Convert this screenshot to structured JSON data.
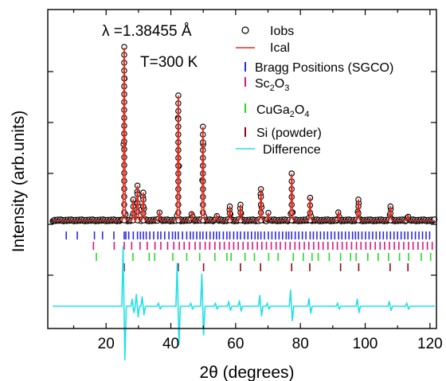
{
  "chart_data": {
    "type": "scatter",
    "xlabel": "2θ (degrees)",
    "ylabel": "Intensity (arb.units)",
    "xlim": [
      2,
      122
    ],
    "x_ticks": [
      20,
      40,
      60,
      80,
      100,
      120
    ],
    "y_ticks": [],
    "annotations": {
      "wavelength": "λ =1.38455 Å",
      "temperature": "T=300 K"
    },
    "legend": {
      "position": "top-right",
      "entries": [
        {
          "name": "Iobs",
          "marker": "open-circle",
          "color": "#000000"
        },
        {
          "name": "Ical",
          "marker": "line",
          "color": "#e8291c"
        },
        {
          "name": "Bragg Positions (SGCO)",
          "marker": "tick",
          "color": "#2a2ae0"
        },
        {
          "name": "Sc2O3",
          "base": "Sc",
          "sub1": "2",
          "mid": "O",
          "sub2": "3",
          "marker": "tick",
          "color": "#e0157a"
        },
        {
          "name": "CuGa2O4",
          "base": "CuGa",
          "sub1": "2",
          "mid": "O",
          "sub2": "4",
          "marker": "tick",
          "color": "#22dd22"
        },
        {
          "name": "Si (powder)",
          "marker": "tick",
          "color": "#8b0a14"
        },
        {
          "name": "Difference",
          "marker": "line",
          "color": "#22e0e8"
        }
      ]
    },
    "baseline_level": 0.0,
    "peaks": [
      {
        "x": 25.6,
        "intensity": 1.0
      },
      {
        "x": 28.4,
        "intensity": 0.12
      },
      {
        "x": 29.7,
        "intensity": 0.2
      },
      {
        "x": 31.5,
        "intensity": 0.16
      },
      {
        "x": 36.5,
        "intensity": 0.05
      },
      {
        "x": 42.3,
        "intensity": 0.72
      },
      {
        "x": 46.5,
        "intensity": 0.05
      },
      {
        "x": 49.9,
        "intensity": 0.54
      },
      {
        "x": 54.1,
        "intensity": 0.03
      },
      {
        "x": 58.2,
        "intensity": 0.08
      },
      {
        "x": 61.5,
        "intensity": 0.09
      },
      {
        "x": 67.8,
        "intensity": 0.18
      },
      {
        "x": 70.1,
        "intensity": 0.04
      },
      {
        "x": 77.3,
        "intensity": 0.27
      },
      {
        "x": 83.0,
        "intensity": 0.13
      },
      {
        "x": 91.8,
        "intensity": 0.05
      },
      {
        "x": 97.9,
        "intensity": 0.12
      },
      {
        "x": 107.8,
        "intensity": 0.08
      },
      {
        "x": 113.2,
        "intensity": 0.03
      }
    ],
    "bragg_positions": {
      "SGCO": [
        7.7,
        11.1,
        16.4,
        18.9,
        22.4,
        25.6,
        26.1,
        27.0,
        28.4,
        29.7,
        30.6,
        31.5,
        32.4,
        33.5,
        34.7,
        36.0,
        36.9,
        38.1,
        39.4,
        40.5,
        41.4,
        42.3,
        43.6,
        44.9,
        46.0,
        46.9,
        48.0,
        49.0,
        49.9,
        51.0,
        52.1,
        53.2,
        54.1,
        55.0,
        56.2,
        57.3,
        58.2,
        59.4,
        60.5,
        61.5,
        62.7,
        63.8,
        64.9,
        66.0,
        66.9,
        67.8,
        68.9,
        70.1,
        71.2,
        72.3,
        73.4,
        74.5,
        75.6,
        76.4,
        77.3,
        78.4,
        79.5,
        80.6,
        81.7,
        83.0,
        84.0,
        85.1,
        86.2,
        87.3,
        88.4,
        89.5,
        90.6,
        91.8,
        92.8,
        93.9,
        95.0,
        96.1,
        97.0,
        97.9,
        99.0,
        100.1,
        101.2,
        102.3,
        103.4,
        104.5,
        105.6,
        106.7,
        107.8,
        108.9,
        110.0,
        111.1,
        112.2,
        113.2,
        114.4,
        115.5,
        116.6,
        117.7,
        118.8,
        119.9
      ],
      "Sc2O3": [
        16.1,
        22.5,
        25.6,
        27.9,
        30.5,
        32.7,
        35.1,
        36.9,
        39.0,
        40.9,
        42.6,
        44.1,
        45.7,
        47.5,
        49.0,
        50.6,
        52.0,
        53.6,
        55.1,
        56.5,
        58.0,
        59.4,
        60.8,
        62.3,
        63.8,
        65.2,
        66.7,
        68.1,
        69.5,
        71.0,
        72.5,
        73.8,
        75.4,
        76.8,
        78.3,
        79.7,
        81.2,
        82.6,
        84.1,
        85.6,
        87.0,
        88.5,
        90.0,
        91.4,
        92.9,
        94.3,
        95.8,
        97.3,
        98.7,
        100.2,
        101.6,
        103.1,
        104.6,
        106.0,
        107.5,
        109.0,
        110.4,
        111.9,
        113.4,
        114.8,
        116.3,
        117.8,
        119.2,
        120.7
      ],
      "CuGa2O4": [
        17.0,
        28.3,
        33.3,
        35.0,
        40.6,
        44.9,
        48.9,
        53.6,
        57.3,
        58.6,
        62.9,
        65.8,
        70.2,
        73.1,
        77.8,
        80.9,
        83.6,
        85.5,
        88.9,
        92.4,
        95.5,
        97.2,
        100.8,
        104.0,
        107.2,
        110.6,
        113.4,
        117.3,
        120.2
      ],
      "Si": [
        25.6,
        42.3,
        50.1,
        61.5,
        67.7,
        77.3,
        82.9,
        92.4,
        98.0,
        107.7,
        113.2
      ]
    }
  }
}
